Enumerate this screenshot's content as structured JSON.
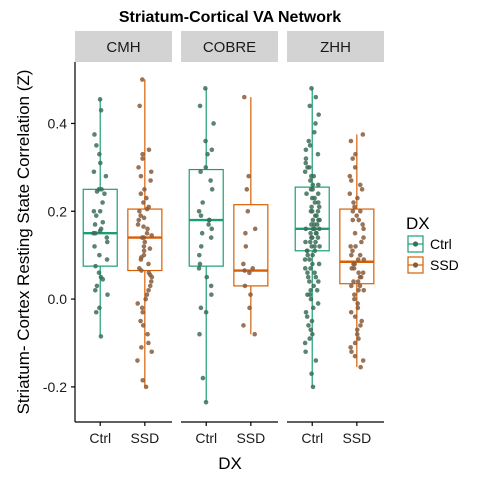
{
  "chart_data": {
    "type": "boxplot",
    "title": "Striatum-Cortical VA Network",
    "xlabel": "DX",
    "ylabel": "Striatum- Cortex Resting State Correlation (Z)",
    "ylim": [
      -0.28,
      0.54
    ],
    "yticks": [
      -0.2,
      0.0,
      0.2,
      0.4
    ],
    "ytick_labels": [
      "-0.2",
      "0.0",
      "0.2",
      "0.4"
    ],
    "categories": [
      "Ctrl",
      "SSD"
    ],
    "colors": {
      "Ctrl": "#1b9e77",
      "SSD": "#d95f02"
    },
    "point_colors": {
      "Ctrl": "#3b6e58",
      "SSD": "#8a5a3a"
    },
    "legend": {
      "title": "DX",
      "entries": [
        "Ctrl",
        "SSD"
      ],
      "position": "right"
    },
    "facets": [
      {
        "label": "CMH",
        "groups": [
          {
            "dx": "Ctrl",
            "q1": 0.075,
            "median": 0.15,
            "q3": 0.25,
            "whisker_low": -0.085,
            "whisker_high": 0.455,
            "points": [
              0.455,
              0.43,
              0.375,
              0.35,
              0.33,
              0.31,
              0.29,
              0.28,
              0.25,
              0.25,
              0.245,
              0.24,
              0.22,
              0.2,
              0.2,
              0.19,
              0.175,
              0.17,
              0.16,
              0.155,
              0.15,
              0.15,
              0.14,
              0.13,
              0.12,
              0.1,
              0.09,
              0.075,
              0.06,
              0.05,
              0.045,
              0.03,
              0.02,
              0.01,
              -0.02,
              -0.03,
              -0.085
            ]
          },
          {
            "dx": "SSD",
            "q1": 0.065,
            "median": 0.14,
            "q3": 0.205,
            "whisker_low": -0.2,
            "whisker_high": 0.5,
            "points": [
              0.5,
              0.44,
              0.34,
              0.33,
              0.32,
              0.3,
              0.29,
              0.28,
              0.27,
              0.25,
              0.24,
              0.23,
              0.22,
              0.21,
              0.205,
              0.2,
              0.19,
              0.185,
              0.18,
              0.17,
              0.165,
              0.16,
              0.15,
              0.145,
              0.14,
              0.14,
              0.13,
              0.12,
              0.115,
              0.11,
              0.1,
              0.095,
              0.09,
              0.08,
              0.07,
              0.065,
              0.06,
              0.055,
              0.05,
              0.04,
              0.03,
              0.02,
              0.01,
              0.0,
              -0.01,
              -0.02,
              -0.03,
              -0.05,
              -0.06,
              -0.08,
              -0.1,
              -0.11,
              -0.12,
              -0.14,
              -0.185,
              -0.2
            ]
          }
        ]
      },
      {
        "label": "COBRE",
        "groups": [
          {
            "dx": "Ctrl",
            "q1": 0.075,
            "median": 0.18,
            "q3": 0.295,
            "whisker_low": -0.235,
            "whisker_high": 0.48,
            "points": [
              0.48,
              0.44,
              0.4,
              0.36,
              0.34,
              0.33,
              0.3,
              0.29,
              0.27,
              0.25,
              0.22,
              0.2,
              0.19,
              0.18,
              0.18,
              0.17,
              0.16,
              0.15,
              0.14,
              0.12,
              0.1,
              0.08,
              0.07,
              0.05,
              0.03,
              0.01,
              -0.02,
              -0.03,
              -0.08,
              -0.18,
              -0.235
            ]
          },
          {
            "dx": "SSD",
            "q1": 0.03,
            "median": 0.065,
            "q3": 0.215,
            "whisker_low": -0.08,
            "whisker_high": 0.46,
            "points": [
              0.46,
              0.28,
              0.25,
              0.2,
              0.16,
              0.15,
              0.12,
              0.08,
              0.07,
              0.065,
              0.06,
              0.03,
              0.01,
              -0.02,
              -0.06,
              -0.08
            ]
          }
        ]
      },
      {
        "label": "ZHH",
        "groups": [
          {
            "dx": "Ctrl",
            "q1": 0.11,
            "median": 0.16,
            "q3": 0.255,
            "whisker_low": -0.2,
            "whisker_high": 0.48,
            "points": [
              0.48,
              0.46,
              0.44,
              0.42,
              0.4,
              0.38,
              0.36,
              0.35,
              0.34,
              0.33,
              0.32,
              0.31,
              0.3,
              0.3,
              0.29,
              0.28,
              0.28,
              0.27,
              0.26,
              0.26,
              0.25,
              0.25,
              0.24,
              0.24,
              0.23,
              0.23,
              0.22,
              0.22,
              0.21,
              0.21,
              0.2,
              0.2,
              0.2,
              0.19,
              0.19,
              0.18,
              0.18,
              0.18,
              0.17,
              0.17,
              0.17,
              0.16,
              0.16,
              0.16,
              0.16,
              0.15,
              0.15,
              0.15,
              0.14,
              0.14,
              0.14,
              0.13,
              0.13,
              0.13,
              0.12,
              0.12,
              0.12,
              0.11,
              0.11,
              0.11,
              0.1,
              0.1,
              0.09,
              0.09,
              0.08,
              0.08,
              0.07,
              0.07,
              0.06,
              0.06,
              0.05,
              0.05,
              0.04,
              0.04,
              0.03,
              0.02,
              0.02,
              0.01,
              0.01,
              0.0,
              -0.01,
              -0.02,
              -0.03,
              -0.04,
              -0.05,
              -0.06,
              -0.07,
              -0.08,
              -0.09,
              -0.1,
              -0.12,
              -0.14,
              -0.17,
              -0.2
            ]
          },
          {
            "dx": "SSD",
            "q1": 0.035,
            "median": 0.085,
            "q3": 0.205,
            "whisker_low": -0.155,
            "whisker_high": 0.375,
            "points": [
              0.375,
              0.36,
              0.33,
              0.32,
              0.3,
              0.28,
              0.27,
              0.26,
              0.25,
              0.24,
              0.23,
              0.22,
              0.21,
              0.2,
              0.2,
              0.19,
              0.18,
              0.18,
              0.17,
              0.16,
              0.15,
              0.14,
              0.13,
              0.12,
              0.12,
              0.11,
              0.1,
              0.1,
              0.09,
              0.09,
              0.08,
              0.08,
              0.07,
              0.07,
              0.06,
              0.06,
              0.05,
              0.05,
              0.04,
              0.04,
              0.03,
              0.03,
              0.02,
              0.02,
              0.01,
              0.0,
              -0.01,
              -0.02,
              -0.03,
              -0.04,
              -0.05,
              -0.06,
              -0.07,
              -0.08,
              -0.09,
              -0.1,
              -0.11,
              -0.12,
              -0.13,
              -0.14,
              -0.155
            ]
          }
        ]
      }
    ]
  }
}
